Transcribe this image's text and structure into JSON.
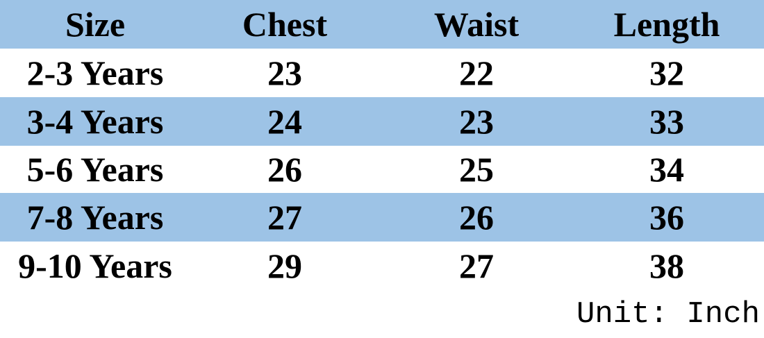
{
  "table": {
    "header": [
      "Size",
      "Chest",
      "Waist",
      "Length"
    ],
    "rows": [
      [
        "2-3 Years",
        "23",
        "22",
        "32"
      ],
      [
        "3-4 Years",
        "24",
        "23",
        "33"
      ],
      [
        "5-6 Years",
        "26",
        "25",
        "34"
      ],
      [
        "7-8 Years",
        "27",
        "26",
        "36"
      ],
      [
        "9-10 Years",
        "29",
        "27",
        "38"
      ]
    ]
  },
  "note": "Unit: Inch"
}
